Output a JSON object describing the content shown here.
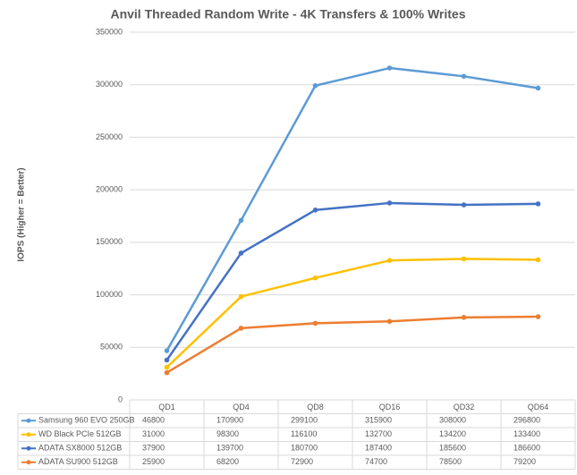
{
  "chart_data": {
    "type": "line",
    "title": "Anvil Threaded Random Write - 4K Transfers & 100% Writes",
    "y_label": "IOPS (Higher = Better)",
    "categories": [
      "QD1",
      "QD4",
      "QD8",
      "QD16",
      "QD32",
      "QD64"
    ],
    "series": [
      {
        "name": "Samsung 960 EVO 250GB",
        "color": "#5b9bd5",
        "values": [
          46800,
          170900,
          299100,
          315900,
          308000,
          296800
        ]
      },
      {
        "name": "WD Black PCIe 512GB",
        "color": "#ffc000",
        "values": [
          31000,
          98300,
          116100,
          132700,
          134200,
          133400
        ]
      },
      {
        "name": "ADATA SX8000 512GB",
        "color": "#4472c4",
        "values": [
          37900,
          139700,
          180700,
          187400,
          185600,
          186600
        ]
      },
      {
        "name": "ADATA SU900 512GB",
        "color": "#ed7d31",
        "values": [
          25900,
          68200,
          72900,
          74700,
          78500,
          79200
        ]
      }
    ],
    "ylim": [
      0,
      350000
    ],
    "yticks": [
      0,
      50000,
      100000,
      150000,
      200000,
      250000,
      300000,
      350000
    ],
    "grid": true,
    "data_table": true
  }
}
